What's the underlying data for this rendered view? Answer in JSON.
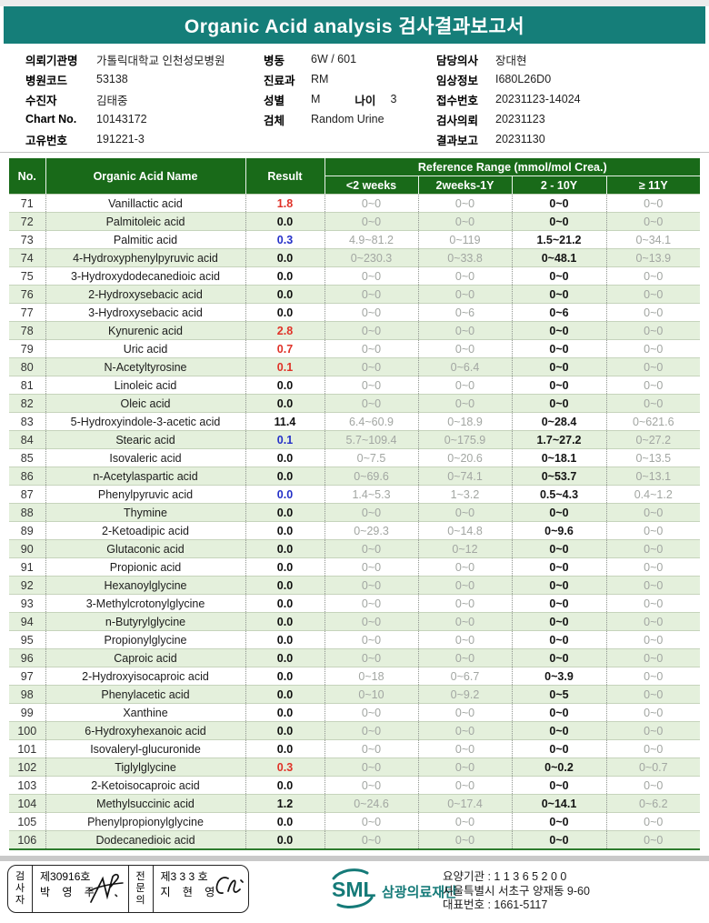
{
  "colors": {
    "accent_teal": "#157e79",
    "table_header_green": "#196a19",
    "row_alt_green": "#e4f0dc",
    "result_high_red": "#e03228",
    "result_low_blue": "#2531c8",
    "ref_gray": "#a2a6a2"
  },
  "title": "Organic Acid analysis 검사결과보고서",
  "patient": {
    "left": [
      {
        "label": "의뢰기관명",
        "value": "가톨릭대학교 인천성모병원"
      },
      {
        "label": "병원코드",
        "value": "53138"
      },
      {
        "label": "수진자",
        "value": "김태중"
      },
      {
        "label": "Chart No.",
        "value": "10143172"
      },
      {
        "label": "고유번호",
        "value": "191221-3"
      }
    ],
    "middle": [
      {
        "label": "병동",
        "value": "6W / 601"
      },
      {
        "label": "진료과",
        "value": "RM"
      },
      {
        "label": "성별",
        "value": "M",
        "label2": "나이",
        "value2": "3"
      },
      {
        "label": "검체",
        "value": "Random Urine"
      }
    ],
    "right": [
      {
        "label": "담당의사",
        "value": "장대현"
      },
      {
        "label": "임상정보",
        "value": "I680L26D0"
      },
      {
        "label": "접수번호",
        "value": "20231123-14024"
      },
      {
        "label": "검사의뢰",
        "value": "20231123"
      },
      {
        "label": "결과보고",
        "value": "20231130"
      }
    ]
  },
  "table": {
    "col_no": "No.",
    "col_name": "Organic Acid Name",
    "col_result": "Result",
    "col_ref_group": "Reference Range (mmol/mol Crea.)",
    "ref_cols": [
      "<2 weeks",
      "2weeks-1Y",
      "2 - 10Y",
      "≥ 11Y"
    ],
    "rows": [
      {
        "no": "71",
        "name": "Vanillactic acid",
        "result": "1.8",
        "flag": "high",
        "refs": [
          "0~0",
          "0~0",
          "0~0",
          "0~0"
        ]
      },
      {
        "no": "72",
        "name": "Palmitoleic acid",
        "result": "0.0",
        "flag": "normal",
        "refs": [
          "0~0",
          "0~0",
          "0~0",
          "0~0"
        ]
      },
      {
        "no": "73",
        "name": "Palmitic acid",
        "result": "0.3",
        "flag": "low",
        "refs": [
          "4.9~81.2",
          "0~119",
          "1.5~21.2",
          "0~34.1"
        ]
      },
      {
        "no": "74",
        "name": "4-Hydroxyphenylpyruvic acid",
        "result": "0.0",
        "flag": "normal",
        "refs": [
          "0~230.3",
          "0~33.8",
          "0~48.1",
          "0~13.9"
        ]
      },
      {
        "no": "75",
        "name": "3-Hydroxydodecanedioic acid",
        "result": "0.0",
        "flag": "normal",
        "refs": [
          "0~0",
          "0~0",
          "0~0",
          "0~0"
        ]
      },
      {
        "no": "76",
        "name": "2-Hydroxysebacic acid",
        "result": "0.0",
        "flag": "normal",
        "refs": [
          "0~0",
          "0~0",
          "0~0",
          "0~0"
        ]
      },
      {
        "no": "77",
        "name": "3-Hydroxysebacic acid",
        "result": "0.0",
        "flag": "normal",
        "refs": [
          "0~0",
          "0~6",
          "0~6",
          "0~0"
        ]
      },
      {
        "no": "78",
        "name": "Kynurenic acid",
        "result": "2.8",
        "flag": "high",
        "refs": [
          "0~0",
          "0~0",
          "0~0",
          "0~0"
        ]
      },
      {
        "no": "79",
        "name": "Uric acid",
        "result": "0.7",
        "flag": "high",
        "refs": [
          "0~0",
          "0~0",
          "0~0",
          "0~0"
        ]
      },
      {
        "no": "80",
        "name": "N-Acetyltyrosine",
        "result": "0.1",
        "flag": "high",
        "refs": [
          "0~0",
          "0~6.4",
          "0~0",
          "0~0"
        ]
      },
      {
        "no": "81",
        "name": "Linoleic acid",
        "result": "0.0",
        "flag": "normal",
        "refs": [
          "0~0",
          "0~0",
          "0~0",
          "0~0"
        ]
      },
      {
        "no": "82",
        "name": "Oleic acid",
        "result": "0.0",
        "flag": "normal",
        "refs": [
          "0~0",
          "0~0",
          "0~0",
          "0~0"
        ]
      },
      {
        "no": "83",
        "name": "5-Hydroxyindole-3-acetic acid",
        "result": "11.4",
        "flag": "normal",
        "refs": [
          "6.4~60.9",
          "0~18.9",
          "0~28.4",
          "0~621.6"
        ]
      },
      {
        "no": "84",
        "name": "Stearic acid",
        "result": "0.1",
        "flag": "low",
        "refs": [
          "5.7~109.4",
          "0~175.9",
          "1.7~27.2",
          "0~27.2"
        ]
      },
      {
        "no": "85",
        "name": "Isovaleric acid",
        "result": "0.0",
        "flag": "normal",
        "refs": [
          "0~7.5",
          "0~20.6",
          "0~18.1",
          "0~13.5"
        ]
      },
      {
        "no": "86",
        "name": "n-Acetylaspartic acid",
        "result": "0.0",
        "flag": "normal",
        "refs": [
          "0~69.6",
          "0~74.1",
          "0~53.7",
          "0~13.1"
        ]
      },
      {
        "no": "87",
        "name": "Phenylpyruvic acid",
        "result": "0.0",
        "flag": "low",
        "refs": [
          "1.4~5.3",
          "1~3.2",
          "0.5~4.3",
          "0.4~1.2"
        ]
      },
      {
        "no": "88",
        "name": "Thymine",
        "result": "0.0",
        "flag": "normal",
        "refs": [
          "0~0",
          "0~0",
          "0~0",
          "0~0"
        ]
      },
      {
        "no": "89",
        "name": "2-Ketoadipic acid",
        "result": "0.0",
        "flag": "normal",
        "refs": [
          "0~29.3",
          "0~14.8",
          "0~9.6",
          "0~0"
        ]
      },
      {
        "no": "90",
        "name": "Glutaconic acid",
        "result": "0.0",
        "flag": "normal",
        "refs": [
          "0~0",
          "0~12",
          "0~0",
          "0~0"
        ]
      },
      {
        "no": "91",
        "name": "Propionic acid",
        "result": "0.0",
        "flag": "normal",
        "refs": [
          "0~0",
          "0~0",
          "0~0",
          "0~0"
        ]
      },
      {
        "no": "92",
        "name": "Hexanoylglycine",
        "result": "0.0",
        "flag": "normal",
        "refs": [
          "0~0",
          "0~0",
          "0~0",
          "0~0"
        ]
      },
      {
        "no": "93",
        "name": "3-Methylcrotonylglycine",
        "result": "0.0",
        "flag": "normal",
        "refs": [
          "0~0",
          "0~0",
          "0~0",
          "0~0"
        ]
      },
      {
        "no": "94",
        "name": "n-Butyrylglycine",
        "result": "0.0",
        "flag": "normal",
        "refs": [
          "0~0",
          "0~0",
          "0~0",
          "0~0"
        ]
      },
      {
        "no": "95",
        "name": "Propionylglycine",
        "result": "0.0",
        "flag": "normal",
        "refs": [
          "0~0",
          "0~0",
          "0~0",
          "0~0"
        ]
      },
      {
        "no": "96",
        "name": "Caproic acid",
        "result": "0.0",
        "flag": "normal",
        "refs": [
          "0~0",
          "0~0",
          "0~0",
          "0~0"
        ]
      },
      {
        "no": "97",
        "name": "2-Hydroxyisocaproic acid",
        "result": "0.0",
        "flag": "normal",
        "refs": [
          "0~18",
          "0~6.7",
          "0~3.9",
          "0~0"
        ]
      },
      {
        "no": "98",
        "name": "Phenylacetic acid",
        "result": "0.0",
        "flag": "normal",
        "refs": [
          "0~10",
          "0~9.2",
          "0~5",
          "0~0"
        ]
      },
      {
        "no": "99",
        "name": "Xanthine",
        "result": "0.0",
        "flag": "normal",
        "refs": [
          "0~0",
          "0~0",
          "0~0",
          "0~0"
        ]
      },
      {
        "no": "100",
        "name": "6-Hydroxyhexanoic acid",
        "result": "0.0",
        "flag": "normal",
        "refs": [
          "0~0",
          "0~0",
          "0~0",
          "0~0"
        ]
      },
      {
        "no": "101",
        "name": "Isovaleryl-glucuronide",
        "result": "0.0",
        "flag": "normal",
        "refs": [
          "0~0",
          "0~0",
          "0~0",
          "0~0"
        ]
      },
      {
        "no": "102",
        "name": "Tiglylglycine",
        "result": "0.3",
        "flag": "high",
        "refs": [
          "0~0",
          "0~0",
          "0~0.2",
          "0~0.7"
        ]
      },
      {
        "no": "103",
        "name": "2-Ketoisocaproic acid",
        "result": "0.0",
        "flag": "normal",
        "refs": [
          "0~0",
          "0~0",
          "0~0",
          "0~0"
        ]
      },
      {
        "no": "104",
        "name": "Methylsuccinic acid",
        "result": "1.2",
        "flag": "normal",
        "refs": [
          "0~24.6",
          "0~17.4",
          "0~14.1",
          "0~6.2"
        ]
      },
      {
        "no": "105",
        "name": "Phenylpropionylglycine",
        "result": "0.0",
        "flag": "normal",
        "refs": [
          "0~0",
          "0~0",
          "0~0",
          "0~0"
        ]
      },
      {
        "no": "106",
        "name": "Dodecanedioic acid",
        "result": "0.0",
        "flag": "normal",
        "refs": [
          "0~0",
          "0~0",
          "0~0",
          "0~0"
        ]
      }
    ]
  },
  "footer": {
    "examiner_title": "검사자",
    "examiner_no": "제30916호",
    "examiner_name": "박 영 주",
    "specialist_title": "전문의",
    "specialist_no": "제3 3 3 호",
    "specialist_name": "지 현 영",
    "logo_text": "SML",
    "org_name": "삼광의료재단",
    "info_lines": [
      "요양기관 : 1 1 3 6 5 2 0 0",
      "서울특별시 서초구 양재동 9-60",
      "대표번호 : 1661-5117"
    ]
  }
}
